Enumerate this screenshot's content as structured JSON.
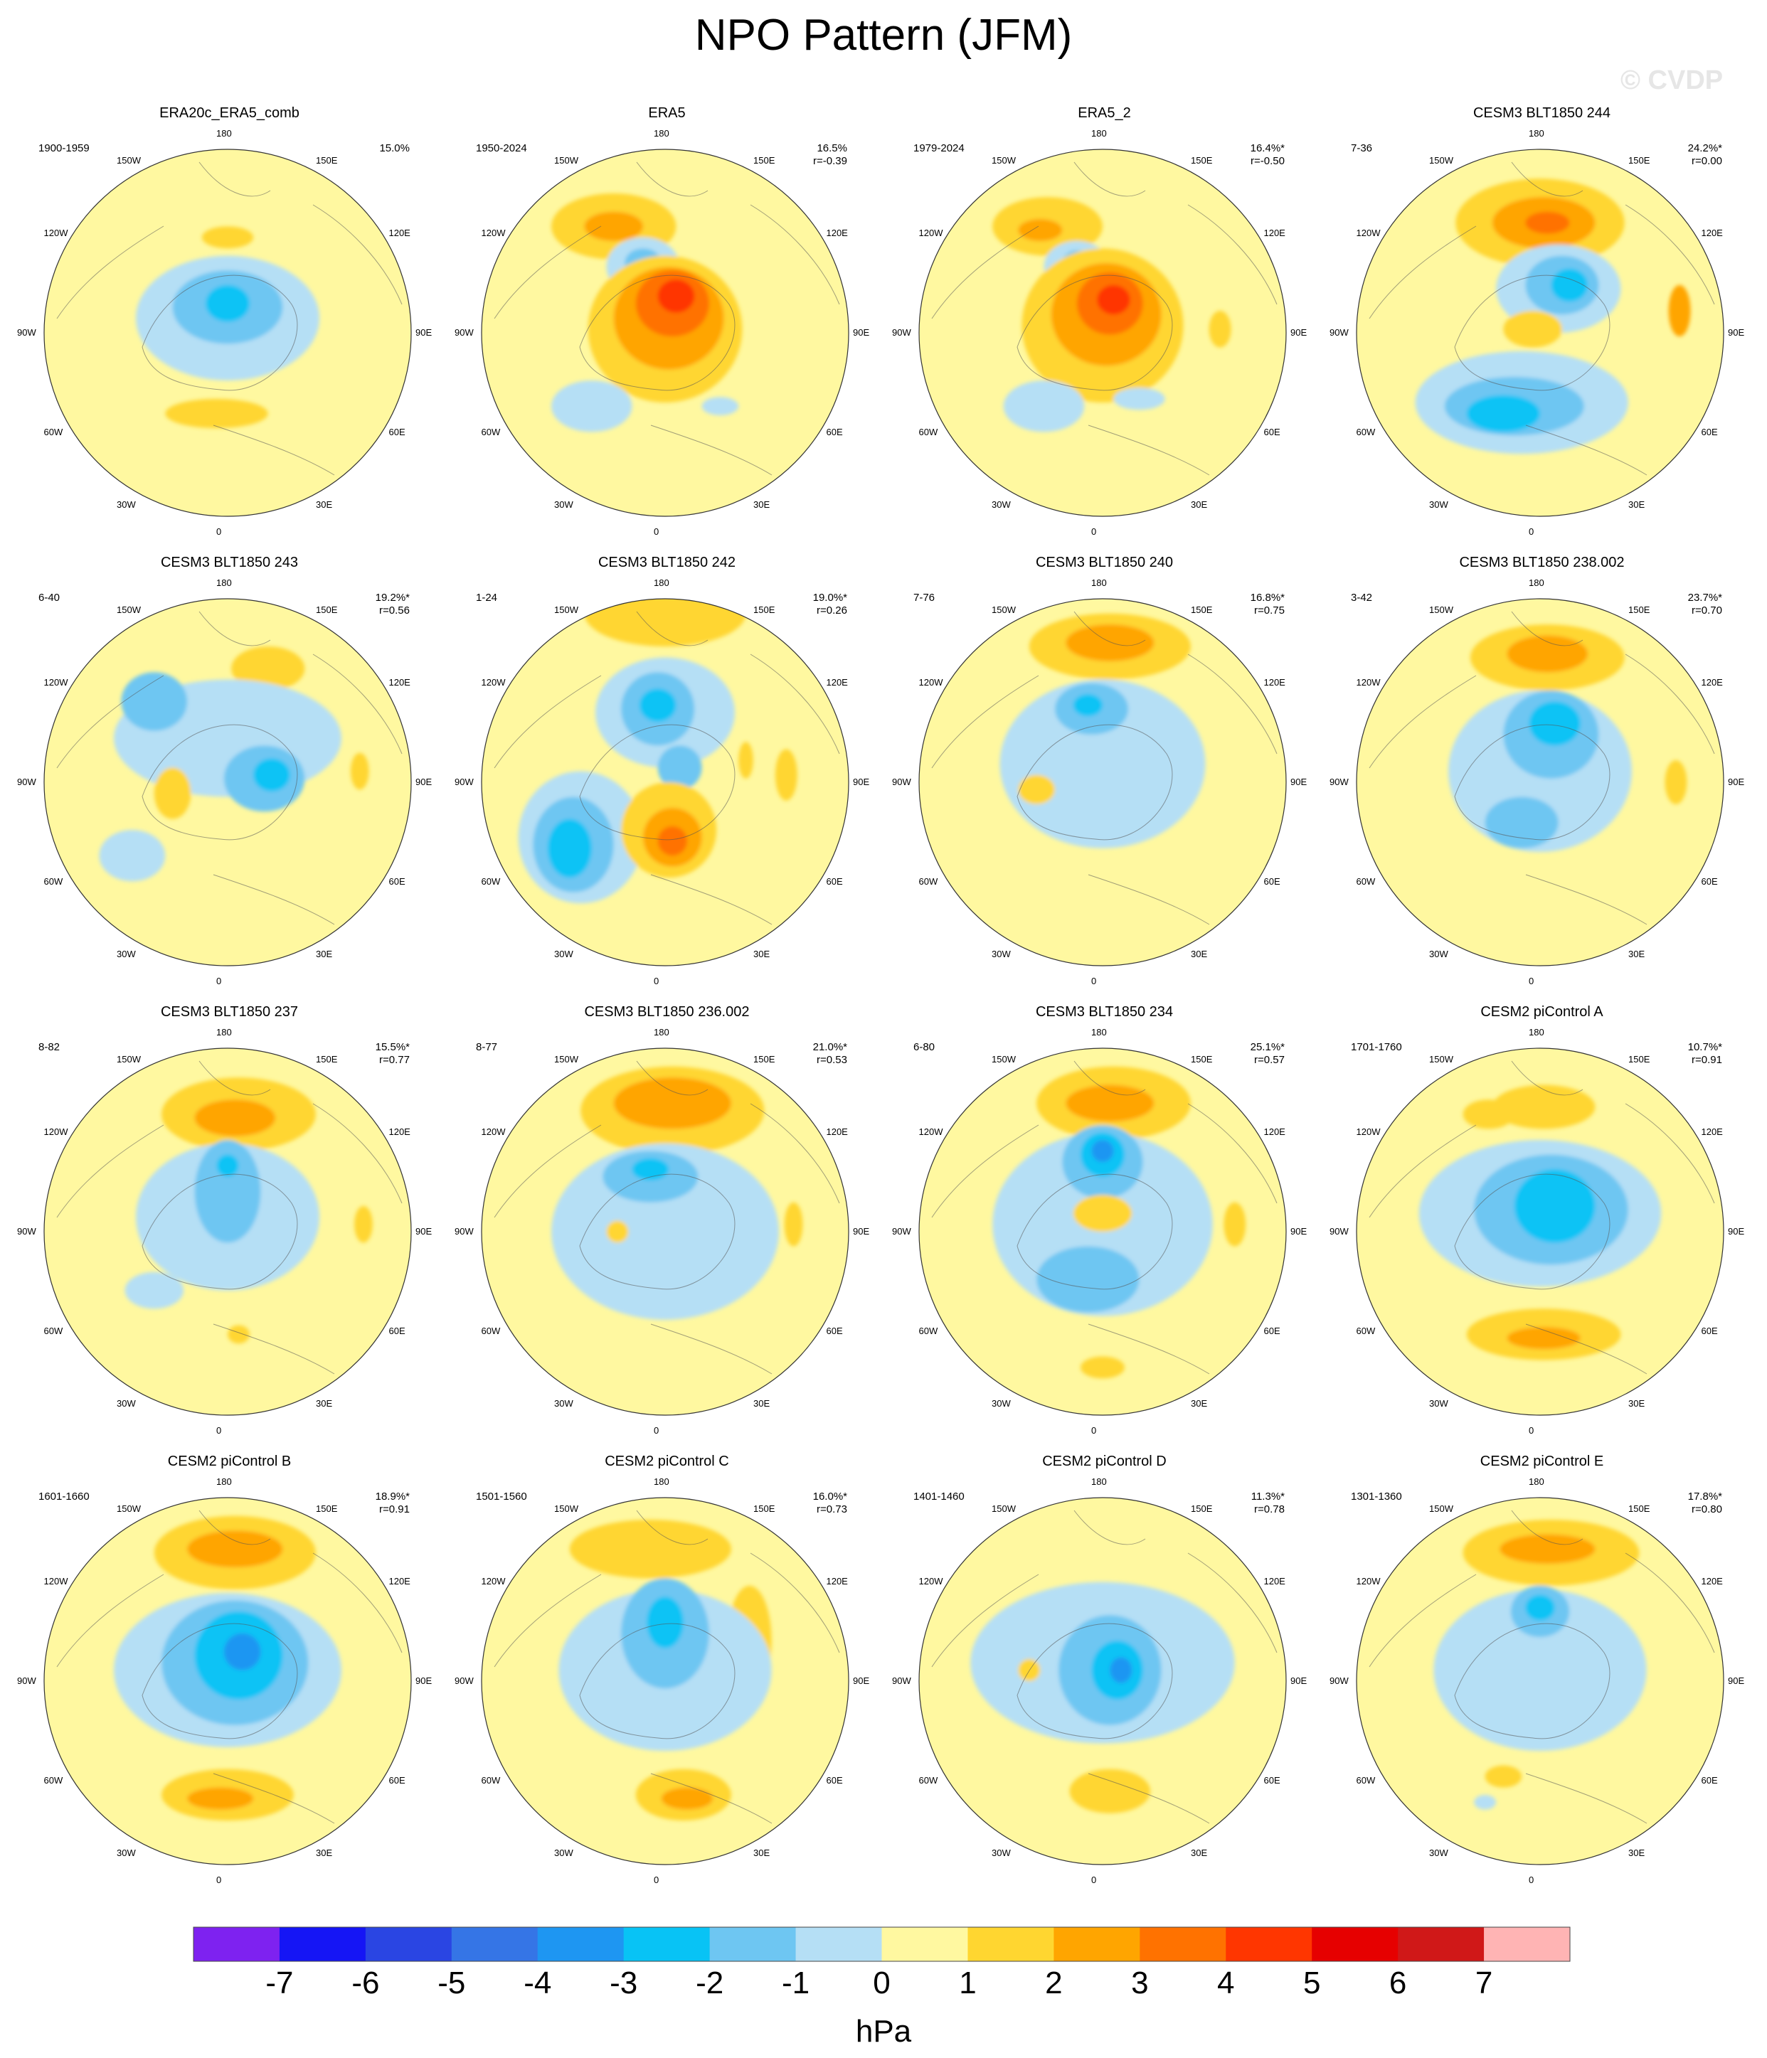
{
  "title": "NPO Pattern (JFM)",
  "watermark": "© CVDP",
  "longitude_labels": [
    "180",
    "150E",
    "120E",
    "90E",
    "60E",
    "30E",
    "0",
    "30W",
    "60W",
    "90W",
    "120W",
    "150W"
  ],
  "panels": [
    {
      "name": "ERA20c_ERA5_comb",
      "years": "1900-1959",
      "pct": "15.0%",
      "r": "",
      "features": [
        [
          "p1",
          0.0,
          0.52,
          0.14,
          0.06
        ],
        [
          "p1",
          -0.06,
          -0.44,
          0.28,
          0.08
        ],
        [
          "n1",
          0.0,
          0.08,
          0.5,
          0.34
        ],
        [
          "n2",
          0.0,
          0.14,
          0.3,
          0.2
        ],
        [
          "n3",
          0.0,
          0.16,
          0.12,
          0.1
        ]
      ]
    },
    {
      "name": "ERA5",
      "years": "1950-2024",
      "pct": "16.5%",
      "r": "r=-0.39",
      "features": [
        [
          "p1",
          -0.28,
          0.58,
          0.34,
          0.18
        ],
        [
          "p2",
          -0.28,
          0.58,
          0.16,
          0.08
        ],
        [
          "n1",
          -0.12,
          0.36,
          0.2,
          0.16
        ],
        [
          "n2",
          -0.12,
          0.38,
          0.1,
          0.08
        ],
        [
          "p1",
          0.0,
          0.02,
          0.42,
          0.4
        ],
        [
          "p2",
          0.02,
          0.08,
          0.3,
          0.28
        ],
        [
          "p3",
          0.04,
          0.16,
          0.2,
          0.18
        ],
        [
          "p4",
          0.06,
          0.2,
          0.1,
          0.09
        ],
        [
          "n1",
          -0.4,
          -0.4,
          0.22,
          0.14
        ],
        [
          "n1",
          0.3,
          -0.4,
          0.1,
          0.05
        ]
      ]
    },
    {
      "name": "ERA5_2",
      "years": "1979-2024",
      "pct": "16.4%*",
      "r": "r=-0.50",
      "features": [
        [
          "p1",
          -0.3,
          0.58,
          0.3,
          0.16
        ],
        [
          "p2",
          -0.34,
          0.56,
          0.12,
          0.06
        ],
        [
          "n1",
          -0.14,
          0.36,
          0.18,
          0.14
        ],
        [
          "n2",
          -0.14,
          0.38,
          0.08,
          0.07
        ],
        [
          "p1",
          0.0,
          0.04,
          0.44,
          0.42
        ],
        [
          "p2",
          0.02,
          0.1,
          0.3,
          0.28
        ],
        [
          "p3",
          0.04,
          0.16,
          0.18,
          0.17
        ],
        [
          "p4",
          0.06,
          0.18,
          0.09,
          0.08
        ],
        [
          "n1",
          -0.32,
          -0.4,
          0.22,
          0.14
        ],
        [
          "n1",
          0.2,
          -0.36,
          0.14,
          0.06
        ],
        [
          "p1",
          0.64,
          0.02,
          0.06,
          0.1
        ]
      ]
    },
    {
      "name": "CESM3 BLT1850 244",
      "years": "7-36",
      "pct": "24.2%*",
      "r": "r=0.00",
      "features": [
        [
          "p1",
          0.0,
          0.6,
          0.46,
          0.24
        ],
        [
          "p2",
          0.02,
          0.6,
          0.28,
          0.14
        ],
        [
          "p3",
          0.04,
          0.6,
          0.12,
          0.06
        ],
        [
          "n1",
          0.1,
          0.24,
          0.34,
          0.24
        ],
        [
          "n2",
          0.12,
          0.26,
          0.2,
          0.16
        ],
        [
          "n3",
          0.16,
          0.26,
          0.1,
          0.09
        ],
        [
          "n1",
          -0.1,
          -0.38,
          0.58,
          0.28
        ],
        [
          "n2",
          -0.14,
          -0.4,
          0.38,
          0.16
        ],
        [
          "n3",
          -0.2,
          -0.44,
          0.2,
          0.1
        ],
        [
          "p2",
          0.76,
          0.12,
          0.06,
          0.14
        ],
        [
          "p1",
          -0.04,
          0.02,
          0.16,
          0.1
        ]
      ]
    },
    {
      "name": "CESM3 BLT1850 243",
      "years": "6-40",
      "pct": "19.2%*",
      "r": "r=0.56",
      "features": [
        [
          "p1",
          0.22,
          0.62,
          0.2,
          0.12
        ],
        [
          "n1",
          0.0,
          0.24,
          0.62,
          0.32
        ],
        [
          "n2",
          -0.4,
          0.44,
          0.18,
          0.16
        ],
        [
          "n2",
          0.2,
          0.02,
          0.22,
          0.18
        ],
        [
          "n3",
          0.24,
          0.04,
          0.1,
          0.09
        ],
        [
          "p1",
          -0.3,
          -0.06,
          0.1,
          0.14
        ],
        [
          "n1",
          -0.52,
          -0.4,
          0.18,
          0.14
        ],
        [
          "p1",
          0.72,
          0.06,
          0.05,
          0.1
        ]
      ]
    },
    {
      "name": "CESM3 BLT1850 242",
      "years": "1-24",
      "pct": "19.0%*",
      "r": "r=0.26",
      "features": [
        [
          "p1",
          0.0,
          0.92,
          0.44,
          0.18
        ],
        [
          "n1",
          0.0,
          0.38,
          0.38,
          0.3
        ],
        [
          "n2",
          -0.04,
          0.4,
          0.2,
          0.2
        ],
        [
          "n3",
          -0.04,
          0.42,
          0.1,
          0.09
        ],
        [
          "n2",
          0.08,
          0.08,
          0.12,
          0.12
        ],
        [
          "n1",
          -0.46,
          -0.3,
          0.34,
          0.36
        ],
        [
          "n2",
          -0.5,
          -0.34,
          0.22,
          0.26
        ],
        [
          "n3",
          -0.52,
          -0.36,
          0.12,
          0.16
        ],
        [
          "p1",
          0.02,
          -0.26,
          0.26,
          0.26
        ],
        [
          "p2",
          0.04,
          -0.3,
          0.16,
          0.16
        ],
        [
          "p3",
          0.04,
          -0.32,
          0.08,
          0.08
        ],
        [
          "p1",
          0.66,
          0.04,
          0.06,
          0.14
        ],
        [
          "p1",
          0.44,
          0.12,
          0.04,
          0.1
        ]
      ]
    },
    {
      "name": "CESM3 BLT1850 240",
      "years": "7-76",
      "pct": "16.8%*",
      "r": "r=0.75",
      "features": [
        [
          "p1",
          0.04,
          0.74,
          0.44,
          0.18
        ],
        [
          "p2",
          0.04,
          0.76,
          0.24,
          0.1
        ],
        [
          "n1",
          0.0,
          0.1,
          0.56,
          0.46
        ],
        [
          "n2",
          -0.06,
          0.4,
          0.2,
          0.14
        ],
        [
          "n3",
          -0.08,
          0.42,
          0.08,
          0.06
        ],
        [
          "p1",
          -0.36,
          -0.04,
          0.1,
          0.08
        ]
      ]
    },
    {
      "name": "CESM3 BLT1850 238.002",
      "years": "3-42",
      "pct": "23.7%*",
      "r": "r=0.70",
      "features": [
        [
          "p1",
          0.04,
          0.68,
          0.42,
          0.18
        ],
        [
          "p2",
          0.04,
          0.7,
          0.22,
          0.1
        ],
        [
          "n1",
          0.0,
          0.06,
          0.5,
          0.44
        ],
        [
          "n2",
          0.06,
          0.26,
          0.26,
          0.24
        ],
        [
          "n3",
          0.08,
          0.32,
          0.14,
          0.12
        ],
        [
          "n2",
          -0.1,
          -0.22,
          0.2,
          0.14
        ],
        [
          "p1",
          0.74,
          0.0,
          0.06,
          0.12
        ]
      ]
    },
    {
      "name": "CESM3 BLT1850 237",
      "years": "8-82",
      "pct": "15.5%*",
      "r": "r=0.77",
      "features": [
        [
          "p1",
          0.06,
          0.64,
          0.42,
          0.2
        ],
        [
          "p2",
          0.04,
          0.62,
          0.22,
          0.1
        ],
        [
          "n1",
          0.0,
          0.08,
          0.5,
          0.4
        ],
        [
          "n2",
          0.0,
          0.22,
          0.18,
          0.28
        ],
        [
          "n3",
          0.0,
          0.36,
          0.06,
          0.06
        ],
        [
          "n1",
          -0.4,
          -0.32,
          0.16,
          0.1
        ],
        [
          "p1",
          0.06,
          -0.56,
          0.06,
          0.05
        ],
        [
          "p1",
          0.74,
          0.04,
          0.05,
          0.1
        ]
      ]
    },
    {
      "name": "CESM3 BLT1850 236.002",
      "years": "8-77",
      "pct": "21.0%*",
      "r": "r=0.53",
      "features": [
        [
          "p1",
          0.04,
          0.66,
          0.5,
          0.24
        ],
        [
          "p2",
          0.04,
          0.7,
          0.32,
          0.14
        ],
        [
          "n1",
          0.0,
          0.0,
          0.62,
          0.48
        ],
        [
          "n2",
          -0.08,
          0.3,
          0.26,
          0.14
        ],
        [
          "n3",
          -0.08,
          0.34,
          0.1,
          0.06
        ],
        [
          "p1",
          -0.26,
          0.0,
          0.06,
          0.06
        ],
        [
          "p1",
          0.7,
          0.04,
          0.05,
          0.12
        ]
      ]
    },
    {
      "name": "CESM3 BLT1850 234",
      "years": "6-80",
      "pct": "25.1%*",
      "r": "r=0.57",
      "features": [
        [
          "p1",
          0.06,
          0.7,
          0.42,
          0.2
        ],
        [
          "p2",
          0.04,
          0.7,
          0.24,
          0.1
        ],
        [
          "n1",
          0.0,
          0.04,
          0.6,
          0.5
        ],
        [
          "n2",
          0.0,
          0.38,
          0.22,
          0.2
        ],
        [
          "n3",
          0.0,
          0.42,
          0.12,
          0.12
        ],
        [
          "n4",
          0.0,
          0.44,
          0.06,
          0.06
        ],
        [
          "p1",
          0.0,
          0.1,
          0.16,
          0.1
        ],
        [
          "n2",
          -0.08,
          -0.26,
          0.28,
          0.18
        ],
        [
          "p1",
          0.0,
          -0.74,
          0.12,
          0.06
        ],
        [
          "p1",
          0.72,
          0.04,
          0.06,
          0.12
        ]
      ]
    },
    {
      "name": "CESM2 piControl A",
      "years": "1701-1760",
      "pct": "10.7%*",
      "r": "r=0.91",
      "features": [
        [
          "p1",
          0.02,
          0.68,
          0.28,
          0.12
        ],
        [
          "p1",
          -0.28,
          0.64,
          0.14,
          0.08
        ],
        [
          "n1",
          0.0,
          0.1,
          0.66,
          0.4
        ],
        [
          "n2",
          0.06,
          0.12,
          0.42,
          0.3
        ],
        [
          "n3",
          0.08,
          0.14,
          0.22,
          0.2
        ],
        [
          "p1",
          0.02,
          -0.56,
          0.42,
          0.14
        ],
        [
          "p2",
          0.02,
          -0.58,
          0.2,
          0.06
        ]
      ]
    },
    {
      "name": "CESM2 piControl B",
      "years": "1601-1660",
      "pct": "18.9%*",
      "r": "r=0.91",
      "features": [
        [
          "p1",
          0.04,
          0.7,
          0.44,
          0.2
        ],
        [
          "p2",
          0.04,
          0.72,
          0.26,
          0.1
        ],
        [
          "n1",
          0.0,
          0.06,
          0.62,
          0.42
        ],
        [
          "n2",
          0.04,
          0.1,
          0.4,
          0.34
        ],
        [
          "n3",
          0.06,
          0.14,
          0.24,
          0.24
        ],
        [
          "n4",
          0.08,
          0.16,
          0.1,
          0.1
        ],
        [
          "p1",
          0.0,
          -0.62,
          0.36,
          0.14
        ],
        [
          "p2",
          -0.04,
          -0.64,
          0.18,
          0.06
        ]
      ]
    },
    {
      "name": "CESM2 piControl C",
      "years": "1501-1560",
      "pct": "16.0%*",
      "r": "r=0.73",
      "features": [
        [
          "p1",
          -0.08,
          0.72,
          0.44,
          0.16
        ],
        [
          "p1",
          0.46,
          0.22,
          0.12,
          0.3
        ],
        [
          "n1",
          0.0,
          0.06,
          0.58,
          0.44
        ],
        [
          "n2",
          0.0,
          0.26,
          0.24,
          0.3
        ],
        [
          "n3",
          0.0,
          0.32,
          0.1,
          0.14
        ],
        [
          "p1",
          0.1,
          -0.62,
          0.26,
          0.14
        ],
        [
          "p2",
          0.12,
          -0.64,
          0.14,
          0.06
        ]
      ]
    },
    {
      "name": "CESM2 piControl D",
      "years": "1401-1460",
      "pct": "11.3%*",
      "r": "r=0.78",
      "features": [
        [
          "n1",
          0.0,
          0.1,
          0.72,
          0.44
        ],
        [
          "n2",
          0.04,
          0.06,
          0.28,
          0.3
        ],
        [
          "n3",
          0.08,
          0.06,
          0.14,
          0.16
        ],
        [
          "n4",
          0.1,
          0.06,
          0.06,
          0.07
        ],
        [
          "p1",
          0.04,
          -0.6,
          0.22,
          0.12
        ],
        [
          "p1",
          -0.4,
          0.06,
          0.06,
          0.06
        ]
      ]
    },
    {
      "name": "CESM2 piControl E",
      "years": "1301-1360",
      "pct": "17.8%*",
      "r": "r=0.80",
      "features": [
        [
          "p1",
          0.06,
          0.7,
          0.48,
          0.18
        ],
        [
          "p2",
          0.04,
          0.72,
          0.26,
          0.08
        ],
        [
          "n1",
          0.0,
          0.06,
          0.58,
          0.44
        ],
        [
          "n2",
          0.0,
          0.38,
          0.16,
          0.14
        ],
        [
          "n3",
          0.0,
          0.4,
          0.08,
          0.07
        ],
        [
          "n1",
          -0.3,
          -0.66,
          0.06,
          0.04
        ],
        [
          "p1",
          -0.2,
          -0.52,
          0.1,
          0.06
        ]
      ]
    }
  ],
  "colorbar": {
    "units": "hPa",
    "labels": [
      "-7",
      "-6",
      "-5",
      "-4",
      "-3",
      "-2",
      "-1",
      "0",
      "1",
      "2",
      "3",
      "4",
      "5",
      "6",
      "7"
    ],
    "colors": [
      "#7e22f0",
      "#1515f5",
      "#2a45e3",
      "#3575e6",
      "#1e96f2",
      "#08c3f5",
      "#6ec6f2",
      "#b5dff5",
      "#fff8a0",
      "#ffd630",
      "#ffa500",
      "#ff7200",
      "#ff3600",
      "#e60000",
      "#d01818",
      "#ffb4b4"
    ]
  },
  "level_colors": {
    "n1": "#b5dff5",
    "n2": "#6ec6f2",
    "n3": "#08c3f5",
    "n4": "#1e96f2",
    "p1": "#ffd630",
    "p2": "#ffa500",
    "p3": "#ff7200",
    "p4": "#ff3600"
  },
  "background_color": "#fff8a0"
}
